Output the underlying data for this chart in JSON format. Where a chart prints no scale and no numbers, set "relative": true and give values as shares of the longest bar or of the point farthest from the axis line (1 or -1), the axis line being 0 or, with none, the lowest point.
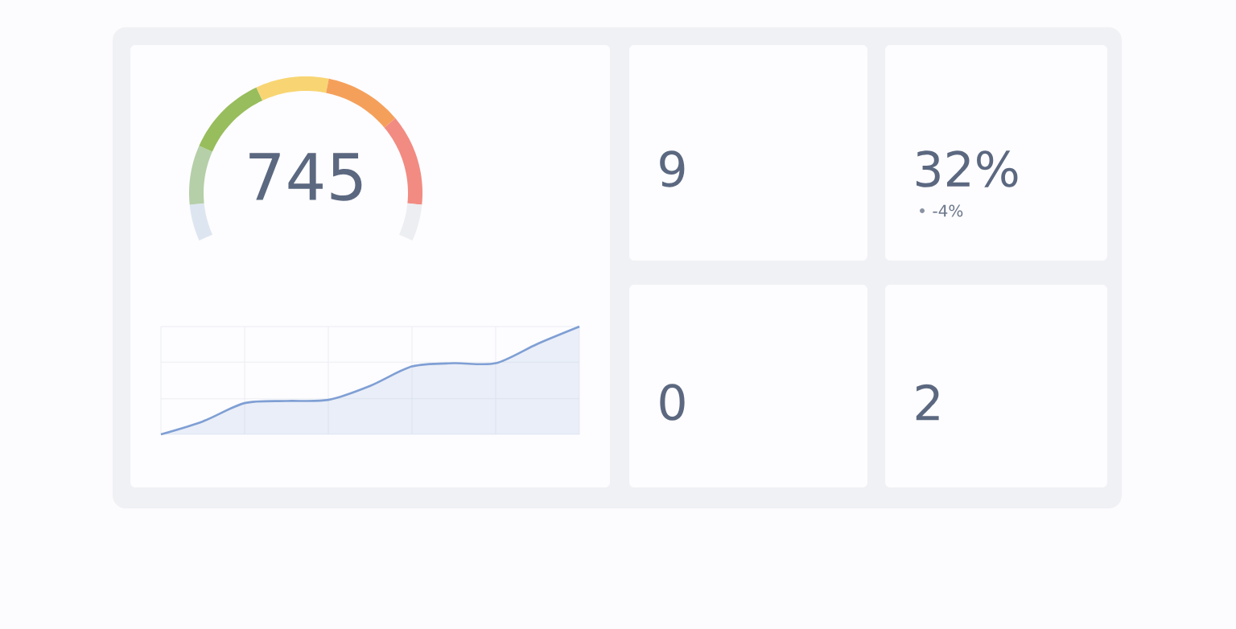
{
  "chart_data": [
    {
      "type": "donut",
      "categories": [
        null,
        null,
        null,
        null,
        null,
        null,
        null
      ],
      "values": [
        8,
        13,
        18,
        16,
        17,
        20,
        8
      ],
      "colors": [
        "#dde6f0",
        "#b5cfa8",
        "#98bd5c",
        "#f8d572",
        "#f5a05a",
        "#f28b82",
        "#eceef2"
      ],
      "annotations": [
        "745"
      ]
    },
    {
      "type": "area",
      "categories": [
        null,
        null,
        null,
        null,
        null,
        null,
        null,
        null,
        null,
        null,
        null
      ],
      "values": [
        0,
        0.12,
        0.29,
        0.31,
        0.32,
        0.45,
        0.63,
        0.66,
        0.66,
        0.84,
        1.0
      ],
      "color": "#7f9fd4",
      "relative": true,
      "grid": true
    },
    {
      "type": "other",
      "title": "9"
    },
    {
      "type": "other",
      "title": "32%",
      "subtitle": "-4%"
    },
    {
      "type": "other",
      "title": "0"
    },
    {
      "type": "other",
      "title": "2"
    }
  ]
}
